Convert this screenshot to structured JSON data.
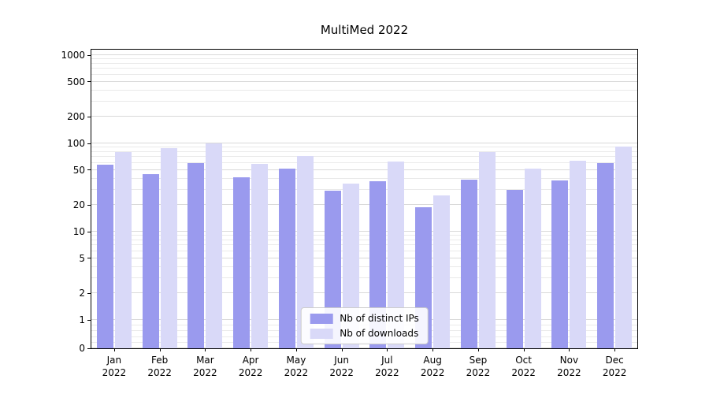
{
  "chart_data": {
    "type": "bar",
    "title": "MultiMed 2022",
    "categories": [
      "Jan\n2022",
      "Feb\n2022",
      "Mar\n2022",
      "Apr\n2022",
      "May\n2022",
      "Jun\n2022",
      "Jul\n2022",
      "Aug\n2022",
      "Sep\n2022",
      "Oct\n2022",
      "Nov\n2022",
      "Dec\n2022"
    ],
    "series": [
      {
        "name": "Nb of distinct IPs",
        "color": "#9a9aee",
        "values": [
          57,
          45,
          60,
          41,
          52,
          29,
          37,
          19,
          39,
          30,
          38,
          60
        ]
      },
      {
        "name": "Nb of downloads",
        "color": "#d9d9f8",
        "values": [
          80,
          88,
          100,
          59,
          72,
          35,
          63,
          26,
          80,
          52,
          64,
          92
        ]
      }
    ],
    "xlabel": "",
    "ylabel": "",
    "yscale": "symlog",
    "yticks": [
      0,
      1,
      2,
      5,
      10,
      20,
      50,
      100,
      200,
      500,
      1000
    ],
    "ylim": [
      0,
      1400
    ],
    "grid": true,
    "legend_position": "lower center"
  }
}
